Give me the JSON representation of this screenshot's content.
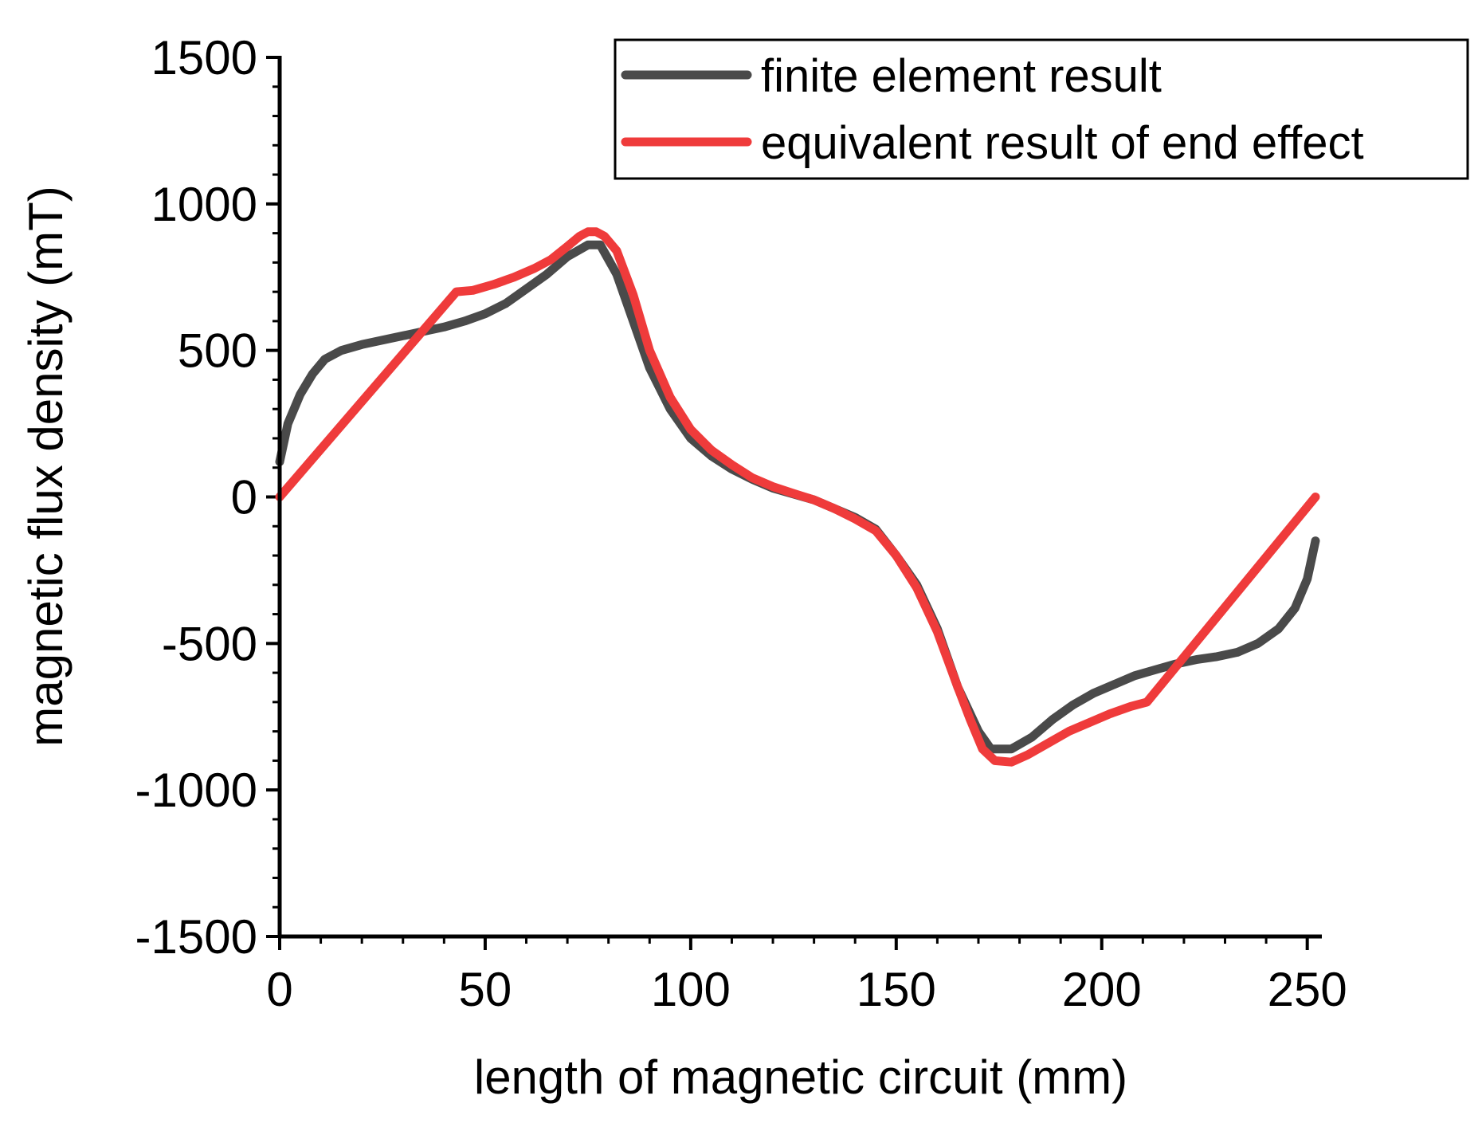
{
  "chart_data": {
    "type": "line",
    "title": "",
    "xlabel": "length of magnetic circuit (mm)",
    "ylabel": "magnetic flux density (mT)",
    "xlim": [
      0,
      252
    ],
    "ylim": [
      -1500,
      1500
    ],
    "xticks": [
      0,
      50,
      100,
      150,
      200,
      250
    ],
    "yticks": [
      -1500,
      -1000,
      -500,
      0,
      500,
      1000,
      1500
    ],
    "x_minor_step": 10,
    "y_minor_step": 100,
    "legend_position": "top-right",
    "series": [
      {
        "name": "finite element result",
        "color": "#4a4a4a",
        "points": [
          [
            0,
            120
          ],
          [
            2,
            250
          ],
          [
            5,
            350
          ],
          [
            8,
            420
          ],
          [
            11,
            470
          ],
          [
            15,
            500
          ],
          [
            20,
            520
          ],
          [
            25,
            535
          ],
          [
            30,
            550
          ],
          [
            35,
            565
          ],
          [
            40,
            580
          ],
          [
            45,
            600
          ],
          [
            50,
            625
          ],
          [
            55,
            660
          ],
          [
            60,
            710
          ],
          [
            65,
            760
          ],
          [
            70,
            820
          ],
          [
            75,
            860
          ],
          [
            78,
            860
          ],
          [
            82,
            760
          ],
          [
            86,
            600
          ],
          [
            90,
            440
          ],
          [
            95,
            300
          ],
          [
            100,
            200
          ],
          [
            105,
            140
          ],
          [
            110,
            95
          ],
          [
            115,
            60
          ],
          [
            120,
            30
          ],
          [
            125,
            10
          ],
          [
            130,
            -10
          ],
          [
            135,
            -40
          ],
          [
            140,
            -70
          ],
          [
            145,
            -110
          ],
          [
            150,
            -200
          ],
          [
            155,
            -300
          ],
          [
            160,
            -450
          ],
          [
            165,
            -650
          ],
          [
            170,
            -800
          ],
          [
            173,
            -860
          ],
          [
            178,
            -860
          ],
          [
            183,
            -820
          ],
          [
            188,
            -760
          ],
          [
            193,
            -710
          ],
          [
            198,
            -670
          ],
          [
            203,
            -640
          ],
          [
            208,
            -610
          ],
          [
            213,
            -590
          ],
          [
            218,
            -570
          ],
          [
            223,
            -555
          ],
          [
            228,
            -545
          ],
          [
            233,
            -530
          ],
          [
            238,
            -500
          ],
          [
            243,
            -450
          ],
          [
            247,
            -380
          ],
          [
            250,
            -280
          ],
          [
            252,
            -150
          ]
        ]
      },
      {
        "name": "equivalent result of end effect",
        "color": "#ef3b3b",
        "points": [
          [
            0,
            0
          ],
          [
            43,
            700
          ],
          [
            47,
            705
          ],
          [
            52,
            725
          ],
          [
            57,
            750
          ],
          [
            62,
            780
          ],
          [
            66,
            810
          ],
          [
            70,
            855
          ],
          [
            73,
            890
          ],
          [
            75,
            905
          ],
          [
            77,
            905
          ],
          [
            79,
            890
          ],
          [
            82,
            840
          ],
          [
            86,
            690
          ],
          [
            90,
            500
          ],
          [
            95,
            340
          ],
          [
            100,
            230
          ],
          [
            105,
            160
          ],
          [
            110,
            110
          ],
          [
            115,
            65
          ],
          [
            120,
            35
          ],
          [
            125,
            12
          ],
          [
            130,
            -10
          ],
          [
            135,
            -40
          ],
          [
            140,
            -75
          ],
          [
            145,
            -115
          ],
          [
            150,
            -200
          ],
          [
            155,
            -310
          ],
          [
            160,
            -460
          ],
          [
            165,
            -650
          ],
          [
            168,
            -760
          ],
          [
            171,
            -860
          ],
          [
            174,
            -900
          ],
          [
            178,
            -905
          ],
          [
            182,
            -880
          ],
          [
            187,
            -840
          ],
          [
            192,
            -800
          ],
          [
            197,
            -770
          ],
          [
            202,
            -740
          ],
          [
            207,
            -715
          ],
          [
            211,
            -700
          ],
          [
            252,
            0
          ]
        ]
      }
    ]
  }
}
